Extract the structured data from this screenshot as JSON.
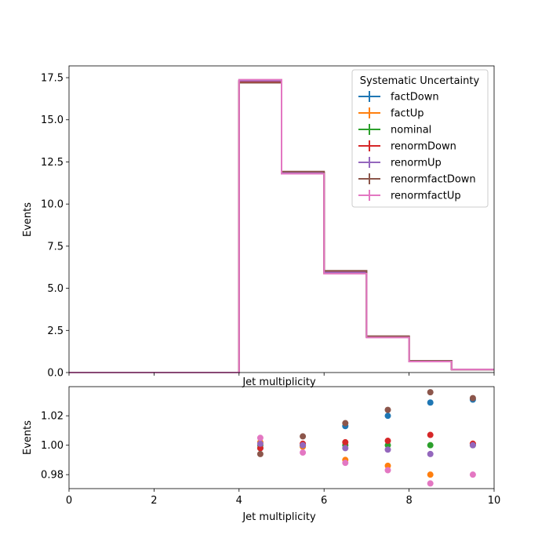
{
  "chart_data": [
    {
      "type": "line",
      "subtype": "step-histogram",
      "xlabel": "Jet multiplicity",
      "ylabel": "Events",
      "xlim": [
        0,
        10
      ],
      "ylim": [
        0,
        18.2
      ],
      "bin_edges": [
        0,
        1,
        2,
        3,
        4,
        5,
        6,
        7,
        8,
        9,
        10
      ],
      "x_ticks": [
        "0",
        "2",
        "4",
        "6",
        "8",
        "10"
      ],
      "y_ticks": [
        "0.0",
        "2.5",
        "5.0",
        "7.5",
        "10.0",
        "12.5",
        "15.0",
        "17.5"
      ],
      "legend": {
        "title": "Systematic Uncertainty",
        "placement": "top-right"
      },
      "series": [
        {
          "name": "factDown",
          "color": "#1f77b4",
          "values": [
            0,
            0,
            0,
            0,
            17.27,
            11.86,
            6.03,
            2.14,
            0.69,
            0.18
          ]
        },
        {
          "name": "factUp",
          "color": "#ff7f0e",
          "values": [
            0,
            0,
            0,
            0,
            17.32,
            11.84,
            5.88,
            2.1,
            0.66,
            0.18
          ]
        },
        {
          "name": "nominal",
          "color": "#2ca02c",
          "values": [
            0,
            0,
            0,
            0,
            17.3,
            11.86,
            5.95,
            2.11,
            0.67,
            0.18
          ]
        },
        {
          "name": "renormDown",
          "color": "#d62728",
          "values": [
            0,
            0,
            0,
            0,
            17.26,
            11.87,
            5.96,
            2.12,
            0.68,
            0.18
          ]
        },
        {
          "name": "renormUp",
          "color": "#9467bd",
          "values": [
            0,
            0,
            0,
            0,
            17.32,
            11.86,
            5.94,
            2.1,
            0.67,
            0.18
          ]
        },
        {
          "name": "renormfactDown",
          "color": "#8c564b",
          "values": [
            0,
            0,
            0,
            0,
            17.2,
            11.93,
            6.04,
            2.16,
            0.69,
            0.18
          ]
        },
        {
          "name": "renormfactUp",
          "color": "#e377c2",
          "values": [
            0,
            0,
            0,
            0,
            17.38,
            11.8,
            5.87,
            2.08,
            0.65,
            0.18
          ]
        }
      ]
    },
    {
      "type": "scatter",
      "xlabel": "Jet multiplicity",
      "ylabel": "Events",
      "xlim": [
        0,
        10
      ],
      "ylim": [
        0.9705,
        1.0398
      ],
      "x_ticks": [
        "0",
        "2",
        "4",
        "6",
        "8",
        "10"
      ],
      "y_ticks": [
        "0.98",
        "1.00",
        "1.02"
      ],
      "x": [
        4.5,
        5.5,
        6.5,
        7.5,
        8.5,
        9.5
      ],
      "series": [
        {
          "name": "factDown",
          "color": "#1f77b4",
          "values": [
            0.998,
            1.0,
            1.013,
            1.02,
            1.029,
            1.031
          ]
        },
        {
          "name": "factUp",
          "color": "#ff7f0e",
          "values": [
            1.002,
            0.999,
            0.99,
            0.986,
            0.98,
            1.001
          ]
        },
        {
          "name": "nominal",
          "color": "#2ca02c",
          "values": [
            1.0,
            1.0,
            1.0,
            1.0,
            1.0,
            1.0
          ]
        },
        {
          "name": "renormDown",
          "color": "#d62728",
          "values": [
            0.998,
            1.001,
            1.002,
            1.003,
            1.007,
            1.001
          ]
        },
        {
          "name": "renormUp",
          "color": "#9467bd",
          "values": [
            1.001,
            1.0,
            0.998,
            0.997,
            0.994,
            1.0
          ]
        },
        {
          "name": "renormfactDown",
          "color": "#8c564b",
          "values": [
            0.994,
            1.006,
            1.015,
            1.024,
            1.036,
            1.032
          ]
        },
        {
          "name": "renormfactUp",
          "color": "#e377c2",
          "values": [
            1.005,
            0.995,
            0.988,
            0.983,
            0.974,
            0.98
          ]
        }
      ]
    }
  ]
}
